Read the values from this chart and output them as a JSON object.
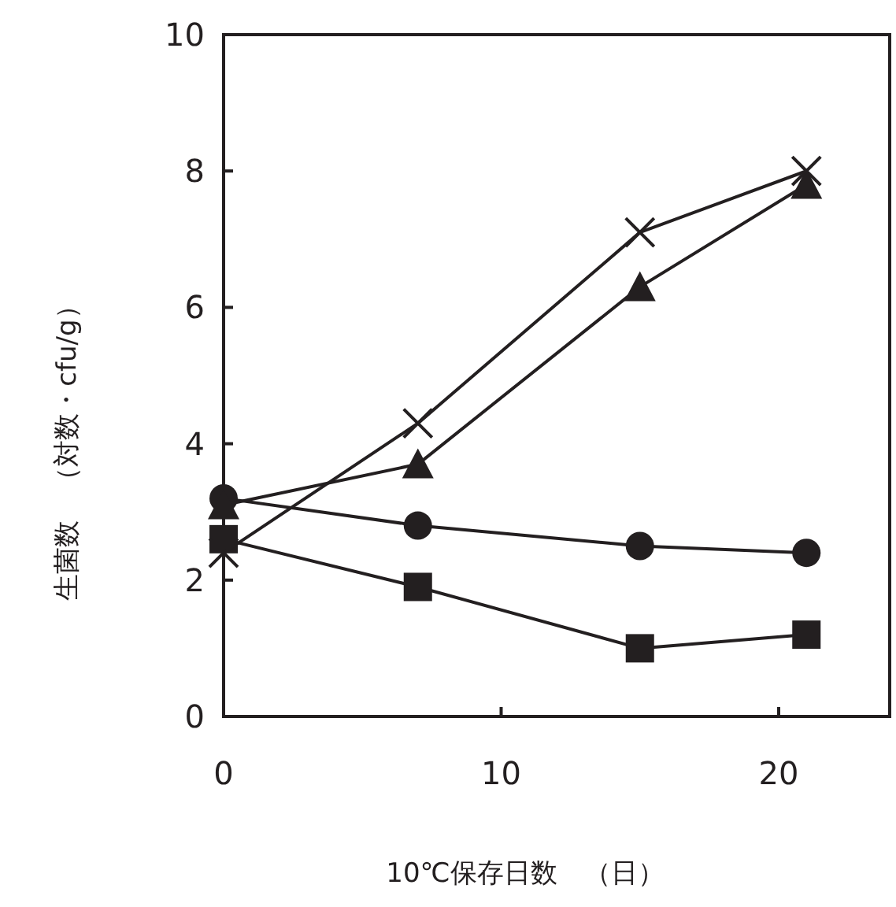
{
  "chart_data": {
    "type": "line",
    "xlabel": "10℃保存日数　（日）",
    "ylabel": "生菌数　（対数・cfu/g）",
    "x": [
      0,
      7,
      15,
      21
    ],
    "series": [
      {
        "color": "#231f20",
        "marker": "cross",
        "values": [
          2.4,
          4.3,
          7.1,
          8.0
        ]
      },
      {
        "color": "#231f20",
        "marker": "triangle",
        "values": [
          3.1,
          3.7,
          6.3,
          7.8
        ]
      },
      {
        "color": "#231f20",
        "marker": "circle",
        "values": [
          3.2,
          2.8,
          2.5,
          2.4
        ]
      },
      {
        "color": "#231f20",
        "marker": "square",
        "values": [
          2.6,
          1.9,
          1.0,
          1.2
        ]
      }
    ],
    "xlim": [
      0,
      24
    ],
    "ylim": [
      0,
      10
    ],
    "xticks": [
      0,
      10,
      20
    ],
    "yticks": [
      0,
      2,
      4,
      6,
      8,
      10
    ]
  }
}
